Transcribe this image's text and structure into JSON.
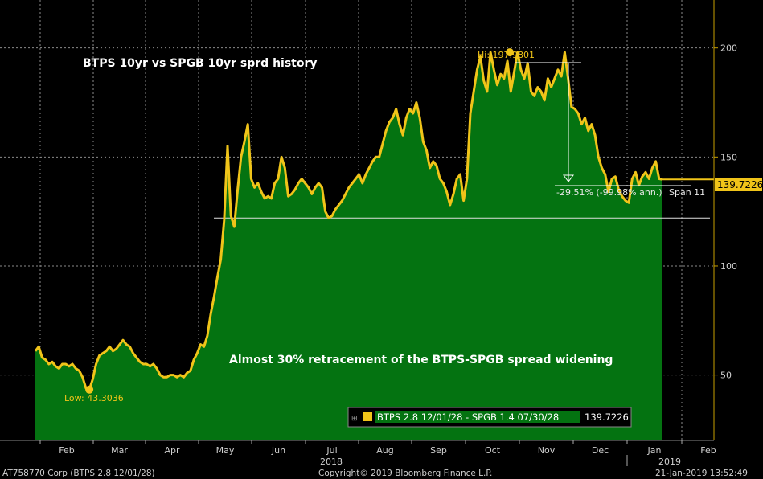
{
  "chart_data": {
    "type": "area",
    "title": "BTPS 10yr vs SPGB 10yr sprd history",
    "annotation": "Almost 30% retracement of the BTPS-SPGB spread widening",
    "x_labels": [
      "Feb",
      "Mar",
      "Apr",
      "May",
      "Jun",
      "Jul",
      "Aug",
      "Sep",
      "Oct",
      "Nov",
      "Dec",
      "Jan",
      "Feb"
    ],
    "x_year_labels": [
      "2018",
      "2019"
    ],
    "y_ticks": [
      50,
      100,
      150,
      200
    ],
    "ylim": [
      20,
      222
    ],
    "series": [
      {
        "name": "BTPS 2.8 12/01/28 - SPGB 1.4 07/30/28",
        "last_value": "139.7226",
        "values": [
          61,
          63,
          58,
          57,
          55,
          56,
          54,
          53,
          55,
          55,
          54,
          55,
          53,
          52,
          49,
          44,
          43.3,
          48,
          55,
          59,
          60,
          61,
          63,
          61,
          62,
          64,
          66,
          64,
          63,
          60,
          58,
          56,
          55,
          55,
          54,
          55,
          53,
          50,
          49,
          49,
          50,
          50,
          49,
          50,
          49,
          51,
          52,
          57,
          60,
          64,
          63,
          68,
          78,
          86,
          95,
          103,
          121,
          155,
          123,
          118,
          135,
          150,
          157,
          165,
          140,
          136,
          138,
          134,
          131,
          132,
          131,
          138,
          140,
          150,
          145,
          132,
          133,
          135,
          138,
          140,
          138,
          136,
          133,
          136,
          138,
          136,
          125,
          122,
          123,
          126,
          128,
          130,
          133,
          136,
          138,
          140,
          142,
          138,
          142,
          145,
          148,
          150,
          150,
          156,
          162,
          166,
          168,
          172,
          165,
          160,
          168,
          172,
          170,
          175,
          168,
          157,
          153,
          145,
          148,
          146,
          140,
          138,
          134,
          128,
          133,
          140,
          142,
          130,
          140,
          170,
          180,
          190,
          196,
          185,
          180,
          198,
          190,
          183,
          188,
          186,
          194,
          180,
          189,
          198,
          190,
          186,
          193,
          180,
          178,
          182,
          180,
          176,
          186,
          182,
          186,
          190,
          187,
          198,
          186,
          173,
          172,
          170,
          165,
          168,
          162,
          165,
          160,
          150,
          145,
          142,
          134,
          140,
          141,
          135,
          132,
          130,
          129,
          140,
          143,
          137,
          141,
          143,
          140,
          145,
          148,
          140,
          139.7
        ]
      }
    ],
    "high_label": "Hi: 197.9801",
    "low_label": "Low: 43.3036",
    "change_label": "-29.51% (-99.98% ann.)",
    "span_label": "Span 11",
    "last_value_label": "139.7226",
    "legend_label": "BTPS 2.8 12/01/28 - SPGB 1.4 07/30/28",
    "legend_value": "139.7226",
    "support_line_value": 122,
    "colors": {
      "area": "#047311",
      "line": "#f0c419",
      "background": "#000000",
      "grid": "#8a8a8a"
    }
  },
  "footer": {
    "left": "AT758770 Corp (BTPS 2.8 12/01/28)",
    "center": "Copyright© 2019 Bloomberg Finance L.P.",
    "right": "21-Jan-2019 13:52:49"
  }
}
